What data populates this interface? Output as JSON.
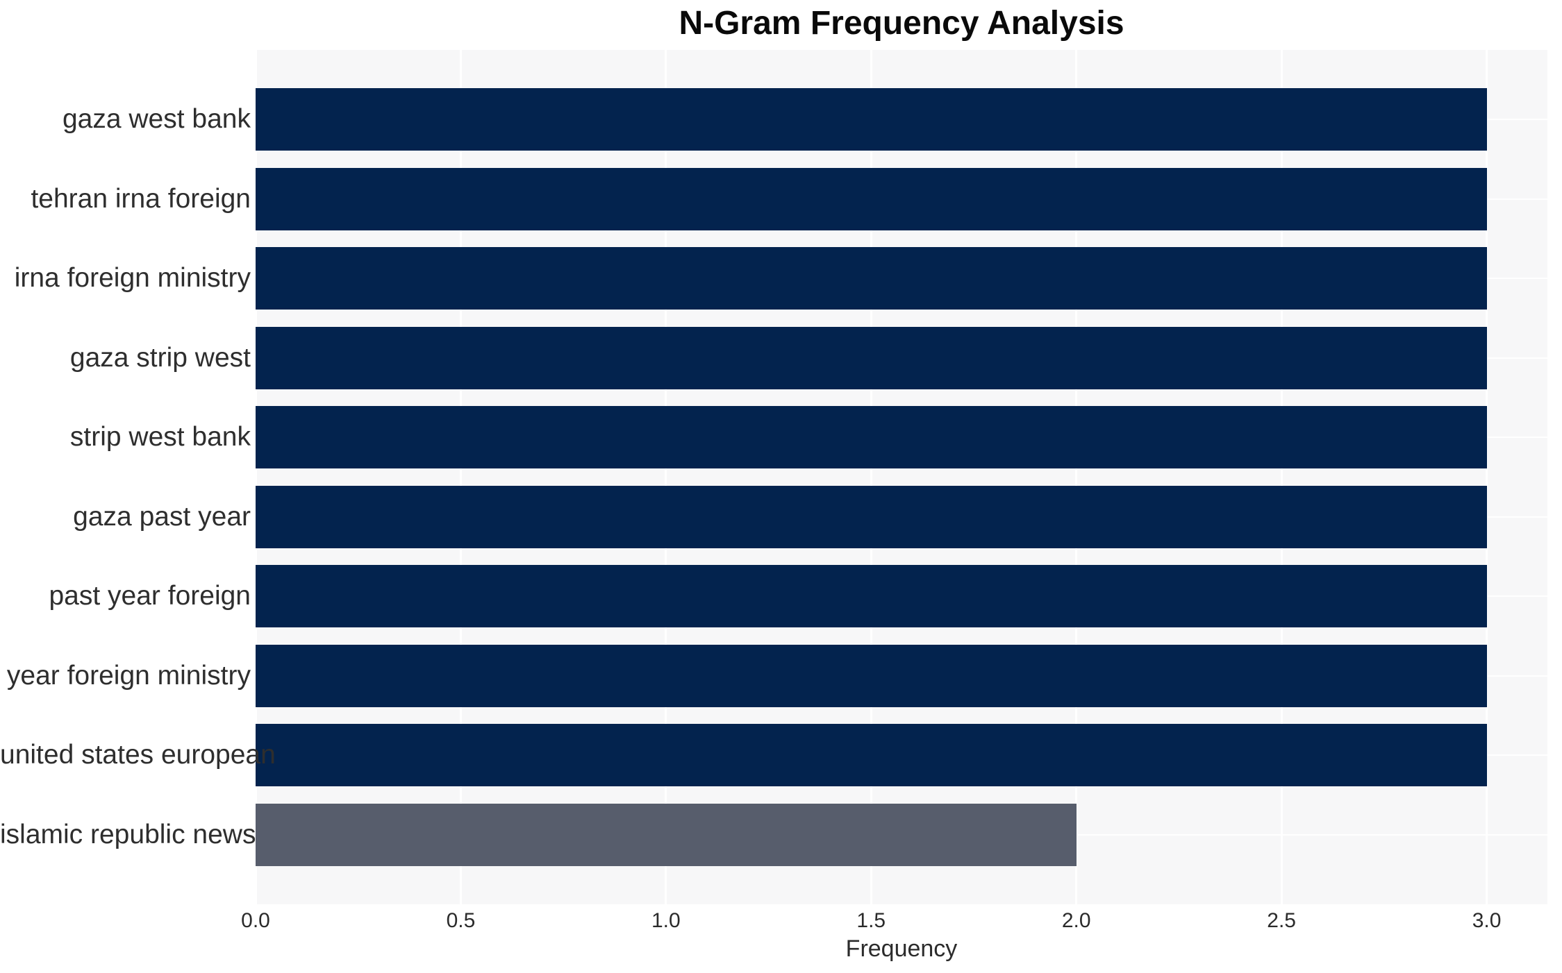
{
  "chart_data": {
    "type": "bar",
    "orientation": "horizontal",
    "title": "N-Gram Frequency Analysis",
    "xlabel": "Frequency",
    "ylabel": "",
    "categories": [
      "gaza west bank",
      "tehran irna foreign",
      "irna foreign ministry",
      "gaza strip west",
      "strip west bank",
      "gaza past year",
      "past year foreign",
      "year foreign ministry",
      "united states european",
      "islamic republic news"
    ],
    "values": [
      3,
      3,
      3,
      3,
      3,
      3,
      3,
      3,
      3,
      2
    ],
    "bar_colors": [
      "#03234e",
      "#03234e",
      "#03234e",
      "#03234e",
      "#03234e",
      "#03234e",
      "#03234e",
      "#03234e",
      "#03234e",
      "#575d6c"
    ],
    "xticks": [
      0.0,
      0.5,
      1.0,
      1.5,
      2.0,
      2.5,
      3.0
    ],
    "xtick_labels": [
      "0.0",
      "0.5",
      "1.0",
      "1.5",
      "2.0",
      "2.5",
      "3.0"
    ],
    "xlim": [
      0,
      3.148
    ],
    "grid": true,
    "legend": false,
    "colors": {
      "plot_background": "#f7f7f8",
      "figure_background": "#ffffff",
      "gridline": "#ffffff",
      "bar_primary": "#03234e",
      "bar_secondary": "#575d6c",
      "title_text": "#0a0a0a",
      "label_text": "#2e2e2e",
      "tick_text": "#2b2b2b"
    }
  }
}
